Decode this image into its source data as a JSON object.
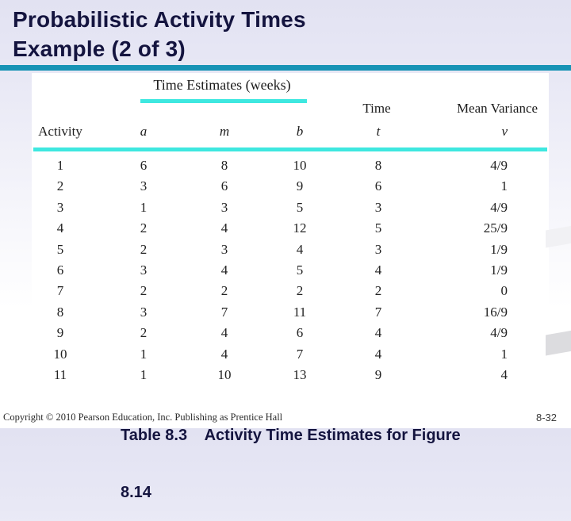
{
  "title": {
    "line1": "Probabilistic Activity Times",
    "line2": "Example (2 of 3)"
  },
  "table": {
    "group_header": "Time Estimates (weeks)",
    "headers": {
      "activity": "Activity",
      "a": "a",
      "m": "m",
      "b": "b",
      "time_label": "Time",
      "time_sub": "t",
      "variance_label": "Mean Variance",
      "variance_sub": "v"
    },
    "rows": [
      {
        "activity": "1",
        "a": "6",
        "m": "8",
        "b": "10",
        "t": "8",
        "v": "4/9"
      },
      {
        "activity": "2",
        "a": "3",
        "m": "6",
        "b": "9",
        "t": "6",
        "v": "1"
      },
      {
        "activity": "3",
        "a": "1",
        "m": "3",
        "b": "5",
        "t": "3",
        "v": "4/9"
      },
      {
        "activity": "4",
        "a": "2",
        "m": "4",
        "b": "12",
        "t": "5",
        "v": "25/9"
      },
      {
        "activity": "5",
        "a": "2",
        "m": "3",
        "b": "4",
        "t": "3",
        "v": "1/9"
      },
      {
        "activity": "6",
        "a": "3",
        "m": "4",
        "b": "5",
        "t": "4",
        "v": "1/9"
      },
      {
        "activity": "7",
        "a": "2",
        "m": "2",
        "b": "2",
        "t": "2",
        "v": "0"
      },
      {
        "activity": "8",
        "a": "3",
        "m": "7",
        "b": "11",
        "t": "7",
        "v": "16/9"
      },
      {
        "activity": "9",
        "a": "2",
        "m": "4",
        "b": "6",
        "t": "4",
        "v": "4/9"
      },
      {
        "activity": "10",
        "a": "1",
        "m": "4",
        "b": "7",
        "t": "4",
        "v": "1"
      },
      {
        "activity": "11",
        "a": "1",
        "m": "10",
        "b": "13",
        "t": "9",
        "v": "4"
      }
    ]
  },
  "caption": {
    "line1": "Table 8.3    Activity Time Estimates for Figure",
    "line2": "8.14"
  },
  "footer": {
    "copyright": "Copyright © 2010 Pearson Education, Inc. Publishing as Prentice Hall",
    "page": "8-32"
  },
  "colors": {
    "title_text": "#14143f",
    "title_rule": "#1793b5",
    "table_rule": "#3ee8e0",
    "background_top": "#e2e2f2"
  }
}
